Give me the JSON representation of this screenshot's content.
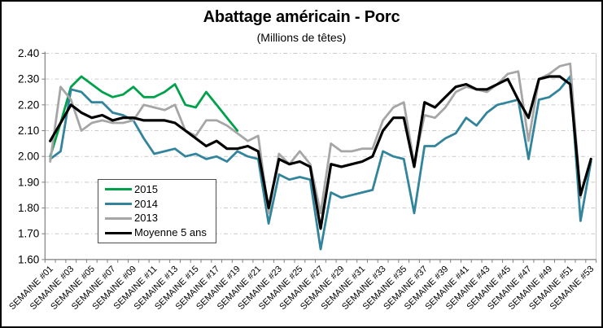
{
  "title": "Abattage américain - Porc",
  "subtitle": "(Millions de têtes)",
  "chart_data": {
    "type": "line",
    "title": "Abattage américain - Porc",
    "subtitle": "(Millions de têtes)",
    "x_categories_count": 53,
    "x_tick_labels": [
      "SEMAINE #01",
      "SEMAINE #03",
      "SEMAINE #05",
      "SEMAINE #07",
      "SEMAINE #09",
      "SEMAINE #11",
      "SEMAINE #13",
      "SEMAINE #15",
      "SEMAINE #17",
      "SEMAINE #19",
      "SEMAINE #21",
      "SEMAINE #23",
      "SEMAINE #25",
      "SEMAINE #27",
      "SEMAINE #29",
      "SEMAINE #31",
      "SEMAINE #33",
      "SEMAINE #35",
      "SEMAINE #37",
      "SEMAINE #39",
      "SEMAINE #41",
      "SEMAINE #43",
      "SEMAINE #45",
      "SEMAINE #47",
      "SEMAINE #49",
      "SEMAINE #51",
      "SEMAINE #53"
    ],
    "y_axis": {
      "min": 1.6,
      "max": 2.4,
      "step": 0.1
    },
    "y_tick_labels": [
      "1.60",
      "1.70",
      "1.80",
      "1.90",
      "2.00",
      "2.10",
      "2.20",
      "2.30",
      "2.40"
    ],
    "grid": true,
    "legend_position": "inside-left",
    "colors": {
      "grid": "#c9c9c9",
      "axis": "#7f7f7f",
      "frame": "#000000"
    },
    "series": [
      {
        "name": "2015",
        "color": "#00a14b",
        "width": 2.8,
        "values": [
          2.0,
          2.13,
          2.27,
          2.31,
          2.28,
          2.25,
          2.23,
          2.24,
          2.27,
          2.23,
          2.23,
          2.25,
          2.28,
          2.2,
          2.19,
          2.25,
          2.2,
          2.15,
          2.1,
          null,
          null,
          null,
          null,
          null,
          null,
          null,
          null,
          null,
          null,
          null,
          null,
          null,
          null,
          null,
          null,
          null,
          null,
          null,
          null,
          null,
          null,
          null,
          null,
          null,
          null,
          null,
          null,
          null,
          null,
          null,
          null,
          null,
          null
        ]
      },
      {
        "name": "2014",
        "color": "#31849b",
        "width": 2.8,
        "values": [
          1.99,
          2.02,
          2.26,
          2.25,
          2.21,
          2.21,
          2.17,
          2.16,
          2.14,
          2.07,
          2.01,
          2.02,
          2.03,
          2.0,
          2.01,
          1.99,
          2.0,
          1.98,
          2.02,
          2.0,
          1.99,
          1.74,
          1.93,
          1.91,
          1.92,
          1.91,
          1.64,
          1.86,
          1.84,
          1.85,
          1.86,
          1.87,
          2.02,
          2.0,
          1.99,
          1.78,
          2.04,
          2.04,
          2.07,
          2.09,
          2.15,
          2.12,
          2.17,
          2.2,
          2.21,
          2.22,
          1.99,
          2.22,
          2.23,
          2.26,
          2.31,
          1.75,
          1.98
        ]
      },
      {
        "name": "2013",
        "color": "#a6a6a6",
        "width": 2.8,
        "values": [
          1.98,
          2.27,
          2.22,
          2.1,
          2.13,
          2.14,
          2.13,
          2.13,
          2.14,
          2.2,
          2.19,
          2.18,
          2.2,
          2.1,
          2.08,
          2.14,
          2.14,
          2.12,
          2.09,
          2.06,
          2.08,
          1.78,
          2.01,
          1.97,
          2.02,
          1.97,
          1.78,
          2.05,
          2.02,
          2.02,
          2.03,
          2.03,
          2.14,
          2.19,
          2.21,
          1.97,
          2.16,
          2.15,
          2.19,
          2.25,
          2.27,
          2.26,
          2.25,
          2.28,
          2.32,
          2.33,
          2.06,
          2.3,
          2.32,
          2.35,
          2.36,
          1.84,
          null
        ]
      },
      {
        "name": "Moyenne 5 ans",
        "color": "#000000",
        "width": 3.2,
        "values": [
          2.06,
          2.13,
          2.2,
          2.17,
          2.15,
          2.16,
          2.14,
          2.15,
          2.15,
          2.14,
          2.14,
          2.14,
          2.13,
          2.1,
          2.07,
          2.04,
          2.06,
          2.03,
          2.03,
          2.04,
          2.02,
          1.8,
          1.99,
          1.97,
          1.98,
          1.96,
          1.72,
          1.97,
          1.96,
          1.97,
          1.98,
          2.0,
          2.1,
          2.15,
          2.15,
          1.96,
          2.21,
          2.19,
          2.23,
          2.27,
          2.28,
          2.26,
          2.26,
          2.28,
          2.3,
          2.22,
          2.15,
          2.3,
          2.31,
          2.31,
          2.28,
          1.85,
          1.99
        ]
      }
    ]
  }
}
